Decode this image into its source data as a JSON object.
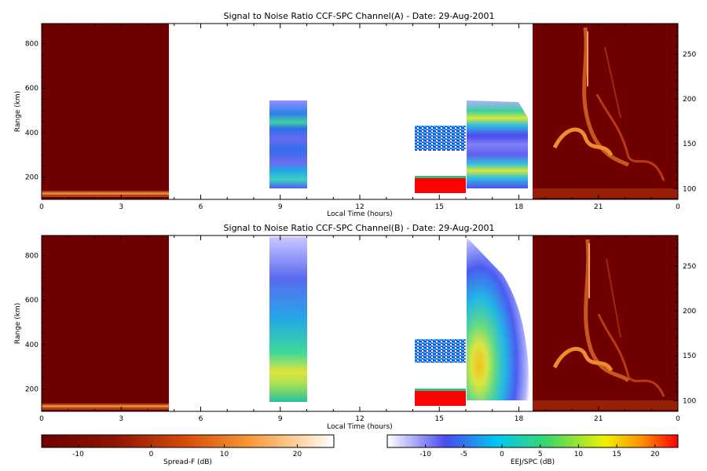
{
  "figure": {
    "panels": [
      {
        "id": "A",
        "title": "Signal to Noise Ratio CCF-SPC Channel(A) - Date: 29-Aug-2001",
        "xlabel": "Local Time (hours)",
        "ylabel": "Range (km)"
      },
      {
        "id": "B",
        "title": "Signal to Noise Ratio CCF-SPC Channel(B) - Date: 29-Aug-2001",
        "xlabel": "Local Time (hours)",
        "ylabel": "Range (km)"
      }
    ],
    "colorbars": [
      {
        "label": "Spread-F (dB)",
        "range": [
          -15,
          25
        ],
        "ticks": [
          "-10",
          "0",
          "10",
          "20"
        ],
        "tick_values": [
          -10,
          0,
          10,
          20
        ],
        "scheme": "dark-red to white"
      },
      {
        "label": "EEJ/SPC (dB)",
        "range": [
          -15,
          23
        ],
        "ticks": [
          "-10",
          "-5",
          "0",
          "5",
          "10",
          "15",
          "20"
        ],
        "tick_values": [
          -10,
          -5,
          0,
          5,
          10,
          15,
          20
        ],
        "scheme": "white-blue-cyan-green-yellow-red"
      }
    ]
  },
  "chart_data": [
    {
      "type": "heatmap",
      "title": "Signal to Noise Ratio CCF-SPC Channel(A) - Date: 29-Aug-2001",
      "xlabel": "Local Time (hours)",
      "ylabel": "Range (km)",
      "xlim": [
        0,
        24
      ],
      "ylim": [
        100,
        890
      ],
      "x_ticks": [
        "0",
        "3",
        "6",
        "9",
        "12",
        "15",
        "18",
        "21",
        "0"
      ],
      "x_tick_values": [
        0,
        3,
        6,
        9,
        12,
        15,
        18,
        21,
        24
      ],
      "y_ticks": [
        "200",
        "400",
        "600",
        "800"
      ],
      "y_tick_values": [
        200,
        400,
        600,
        800
      ],
      "y2_ticks": [
        "100",
        "150",
        "200",
        "250"
      ],
      "y2_tick_values": [
        100,
        150,
        200,
        250
      ],
      "y2lim": [
        88,
        284
      ],
      "regions": [
        {
          "x": [
            0,
            4.8
          ],
          "scale": "Spread-F",
          "background_db": -13,
          "note": "E-layer echo near 100-130 km"
        },
        {
          "x": [
            8.7,
            10.1
          ],
          "scale": "EEJ/SPC",
          "layers_km": [
            [
              130,
              250,
              2
            ],
            [
              300,
              400,
              -3
            ],
            [
              400,
              490,
              6
            ],
            [
              490,
              540,
              -8
            ]
          ]
        },
        {
          "x": [
            14.1,
            16.0
          ],
          "scale": "EEJ/SPC",
          "strong_band_km": [
            120,
            200
          ],
          "strong_db": 22,
          "patch_km": [
            300,
            410
          ]
        },
        {
          "x": [
            16.0,
            18.3
          ],
          "scale": "EEJ/SPC",
          "layers_km": [
            [
              130,
              250,
              8
            ],
            [
              280,
              350,
              -6
            ],
            [
              380,
              500,
              12
            ],
            [
              500,
              550,
              -10
            ]
          ]
        },
        {
          "x": [
            18.6,
            24
          ],
          "scale": "Spread-F",
          "background_db": -13,
          "note": "Spread-F plumes, 100-800 km"
        }
      ]
    },
    {
      "type": "heatmap",
      "title": "Signal to Noise Ratio CCF-SPC Channel(B) - Date: 29-Aug-2001",
      "xlabel": "Local Time (hours)",
      "ylabel": "Range (km)",
      "xlim": [
        0,
        24
      ],
      "ylim": [
        100,
        890
      ],
      "x_ticks": [
        "0",
        "3",
        "6",
        "9",
        "12",
        "15",
        "18",
        "21",
        "0"
      ],
      "x_tick_values": [
        0,
        3,
        6,
        9,
        12,
        15,
        18,
        21,
        24
      ],
      "y_ticks": [
        "200",
        "400",
        "600",
        "800"
      ],
      "y_tick_values": [
        200,
        400,
        600,
        800
      ],
      "y2_ticks": [
        "100",
        "150",
        "200",
        "250"
      ],
      "y2_tick_values": [
        100,
        150,
        200,
        250
      ],
      "y2lim": [
        88,
        284
      ],
      "regions": [
        {
          "x": [
            0,
            4.8
          ],
          "scale": "Spread-F",
          "background_db": -13,
          "note": "E-layer echo near 100-120 km"
        },
        {
          "x": [
            8.7,
            10.1
          ],
          "scale": "EEJ/SPC",
          "layers_km": [
            [
              140,
              300,
              10
            ],
            [
              300,
              600,
              3
            ],
            [
              600,
              890,
              -8
            ]
          ]
        },
        {
          "x": [
            14.1,
            16.0
          ],
          "scale": "EEJ/SPC",
          "strong_band_km": [
            120,
            195
          ],
          "strong_db": 22,
          "patch_km": [
            330,
            430
          ]
        },
        {
          "x": [
            16.0,
            18.4
          ],
          "scale": "EEJ/SPC",
          "layers_km": [
            [
              150,
              400,
              14
            ],
            [
              400,
              650,
              2
            ],
            [
              650,
              890,
              -8
            ]
          ]
        },
        {
          "x": [
            18.6,
            24
          ],
          "scale": "Spread-F",
          "background_db": -13,
          "note": "Spread-F plumes, 100-800 km"
        }
      ]
    }
  ]
}
